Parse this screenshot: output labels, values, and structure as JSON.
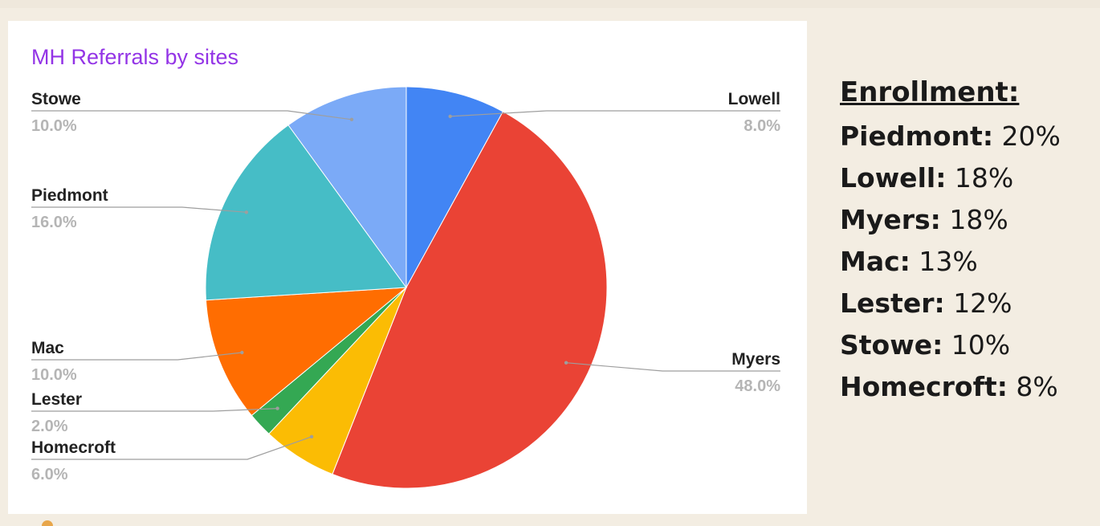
{
  "chart_data": {
    "type": "pie",
    "title": "MH Referrals by sites",
    "slices": [
      {
        "label": "Lowell",
        "value": 8.0,
        "pct_text": "8.0%",
        "color": "#4285f4",
        "label_side": "right"
      },
      {
        "label": "Myers",
        "value": 48.0,
        "pct_text": "48.0%",
        "color": "#ea4335",
        "label_side": "right"
      },
      {
        "label": "Homecroft",
        "value": 6.0,
        "pct_text": "6.0%",
        "color": "#fbbc04",
        "label_side": "left"
      },
      {
        "label": "Lester",
        "value": 2.0,
        "pct_text": "2.0%",
        "color": "#34a853",
        "label_side": "left"
      },
      {
        "label": "Mac",
        "value": 10.0,
        "pct_text": "10.0%",
        "color": "#ff6d01",
        "label_side": "left"
      },
      {
        "label": "Piedmont",
        "value": 16.0,
        "pct_text": "16.0%",
        "color": "#46bdc6",
        "label_side": "left"
      },
      {
        "label": "Stowe",
        "value": 10.0,
        "pct_text": "10.0%",
        "color": "#7baaf7",
        "label_side": "left"
      }
    ],
    "legend": "side labels with leader lines"
  },
  "enrollment": {
    "heading": "Enrollment:",
    "rows": [
      {
        "site": "Piedmont:",
        "pct": "20%"
      },
      {
        "site": "Lowell:",
        "pct": "18%"
      },
      {
        "site": "Myers:",
        "pct": "18%"
      },
      {
        "site": "Mac:",
        "pct": "13%"
      },
      {
        "site": "Lester:",
        "pct": "12%"
      },
      {
        "site": "Stowe:",
        "pct": "10%"
      },
      {
        "site": "Homecroft:",
        "pct": "8%"
      }
    ]
  }
}
